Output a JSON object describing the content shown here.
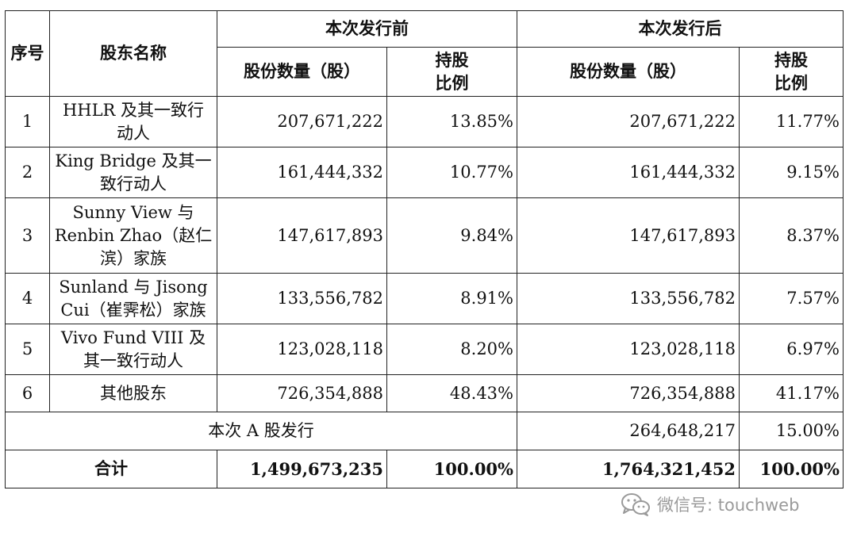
{
  "header": {
    "seq": "序号",
    "name": "股东名称",
    "before": "本次发行前",
    "after": "本次发行后",
    "shares": "股份数量（股）",
    "ratio_line1": "持股",
    "ratio_line2": "比例"
  },
  "rows": [
    {
      "seq": "1",
      "name1": "HHLR 及其一致行",
      "name2": "动人",
      "name3": "",
      "before_shares": "207,671,222",
      "before_ratio": "13.85%",
      "after_shares": "207,671,222",
      "after_ratio": "11.77%"
    },
    {
      "seq": "2",
      "name1": "King Bridge 及其一",
      "name2": "致行动人",
      "name3": "",
      "before_shares": "161,444,332",
      "before_ratio": "10.77%",
      "after_shares": "161,444,332",
      "after_ratio": "9.15%"
    },
    {
      "seq": "3",
      "name1": "Sunny View 与",
      "name2": "Renbin Zhao（赵仁",
      "name3": "滨）家族",
      "before_shares": "147,617,893",
      "before_ratio": "9.84%",
      "after_shares": "147,617,893",
      "after_ratio": "8.37%"
    },
    {
      "seq": "4",
      "name1": "Sunland 与 Jisong",
      "name2": "Cui（崔霁松）家族",
      "name3": "",
      "before_shares": "133,556,782",
      "before_ratio": "8.91%",
      "after_shares": "133,556,782",
      "after_ratio": "7.57%"
    },
    {
      "seq": "5",
      "name1": "Vivo Fund VIII 及",
      "name2": "其一致行动人",
      "name3": "",
      "before_shares": "123,028,118",
      "before_ratio": "8.20%",
      "after_shares": "123,028,118",
      "after_ratio": "6.97%"
    },
    {
      "seq": "6",
      "name1": "其他股东",
      "name2": "",
      "name3": "",
      "before_shares": "726,354,888",
      "before_ratio": "48.43%",
      "after_shares": "726,354,888",
      "after_ratio": "41.17%"
    }
  ],
  "issue": {
    "label": "本次 A 股发行",
    "after_shares": "264,648,217",
    "after_ratio": "15.00%"
  },
  "total": {
    "label": "合计",
    "before_shares": "1,499,673,235",
    "before_ratio": "100.00%",
    "after_shares": "1,764,321,452",
    "after_ratio": "100.00%"
  },
  "watermark": {
    "text": "微信号: touchweb",
    "icon": "wechat-icon",
    "color": "#9a9a9a"
  }
}
